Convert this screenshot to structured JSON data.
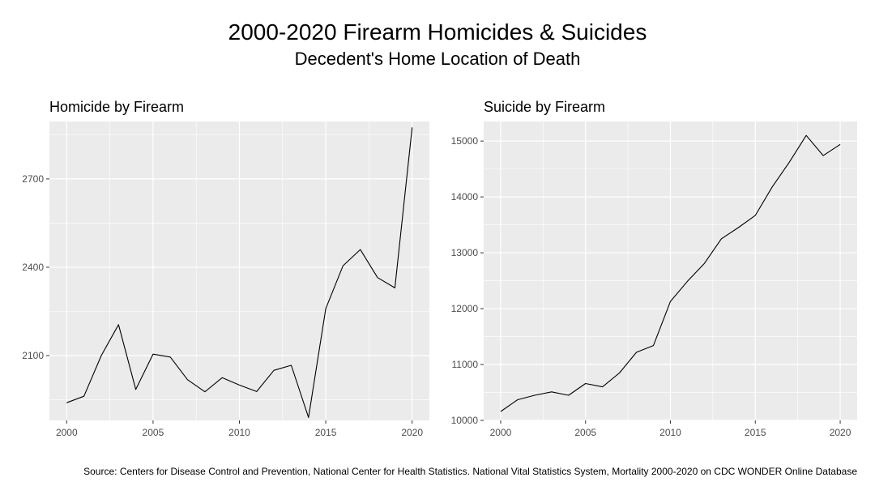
{
  "title": "2000-2020 Firearm Homicides & Suicides",
  "subtitle": "Decedent's Home Location of Death",
  "caption": "Source: Centers for Disease Control and Prevention, National Center for Health Statistics. National Vital Statistics System, Mortality 2000-2020 on CDC WONDER Online Database",
  "colors": {
    "panel_background": "#ebebeb",
    "grid": "#ffffff",
    "line": "#000000",
    "tick_label": "#4d4d4d"
  },
  "chart_data": [
    {
      "type": "line",
      "title": "Homicide by Firearm",
      "xlabel": "",
      "ylabel": "",
      "grid": true,
      "x": [
        2000,
        2001,
        2002,
        2003,
        2004,
        2005,
        2006,
        2007,
        2008,
        2009,
        2010,
        2011,
        2012,
        2013,
        2014,
        2015,
        2016,
        2017,
        2018,
        2019,
        2020
      ],
      "series": [
        {
          "values": [
            1940,
            1962,
            2100,
            2205,
            1985,
            2105,
            2095,
            2018,
            1977,
            2025,
            2000,
            1978,
            2050,
            2067,
            1890,
            2260,
            2405,
            2460,
            2365,
            2330,
            2875
          ]
        }
      ],
      "xlim": [
        1999,
        2021
      ],
      "ylim": [
        1880,
        2895
      ],
      "xticks": [
        2000,
        2005,
        2010,
        2015,
        2020
      ],
      "yticks": [
        2100,
        2400,
        2700
      ],
      "xtick_labels": [
        "2000",
        "2005",
        "2010",
        "2015",
        "2020"
      ],
      "ytick_labels": [
        "2100",
        "2400",
        "2700"
      ]
    },
    {
      "type": "line",
      "title": "Suicide by Firearm",
      "xlabel": "",
      "ylabel": "",
      "grid": true,
      "x": [
        2000,
        2001,
        2002,
        2003,
        2004,
        2005,
        2006,
        2007,
        2008,
        2009,
        2010,
        2011,
        2012,
        2013,
        2014,
        2015,
        2016,
        2017,
        2018,
        2019,
        2020
      ],
      "series": [
        {
          "values": [
            10160,
            10370,
            10450,
            10510,
            10450,
            10660,
            10600,
            10850,
            11220,
            11340,
            12130,
            12490,
            12810,
            13250,
            13450,
            13670,
            14180,
            14620,
            15100,
            14740,
            14940
          ]
        }
      ],
      "xlim": [
        1999,
        2021
      ],
      "ylim": [
        10000,
        15350
      ],
      "xticks": [
        2000,
        2005,
        2010,
        2015,
        2020
      ],
      "yticks": [
        10000,
        11000,
        12000,
        13000,
        14000,
        15000
      ],
      "xtick_labels": [
        "2000",
        "2005",
        "2010",
        "2015",
        "2020"
      ],
      "ytick_labels": [
        "10000",
        "11000",
        "12000",
        "13000",
        "14000",
        "15000"
      ]
    }
  ]
}
